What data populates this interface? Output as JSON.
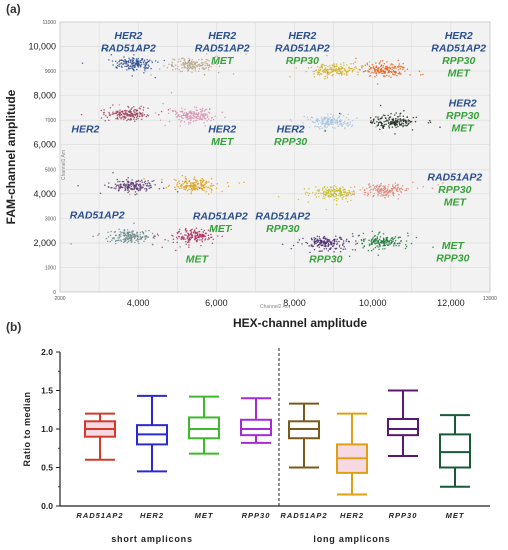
{
  "panel_a": {
    "label": "(a)",
    "xlabel": "HEX-channel amplitude",
    "ylabel": "FAM-channel amplitude",
    "inner_xlabel": "Channel2 Am",
    "inner_ylabel": "Channel1 Am",
    "colors": {
      "blue_label": "#2a4f8f",
      "green_label": "#37a23b",
      "plot_bg": "#f2f2f2"
    }
  },
  "panel_b": {
    "label": "(b)",
    "group_labels": [
      "short amplicons",
      "long amplicons"
    ]
  },
  "chart_data": [
    {
      "type": "scatter",
      "xlim": [
        2000,
        13000
      ],
      "ylim": [
        0,
        11000
      ],
      "x_ticks": [
        "4,000",
        "6,000",
        "8,000",
        "10,000",
        "12,000"
      ],
      "x_ticks_small": [
        "2000",
        "13000"
      ],
      "y_ticks": [
        "2,000",
        "4,000",
        "6,000",
        "8,000",
        "10,000"
      ],
      "y_ticks_small": [
        "0",
        "1000",
        "3000",
        "5000",
        "7000",
        "9000",
        "11000"
      ],
      "grid": true,
      "clusters": [
        {
          "x": 3900,
          "y": 9300,
          "color": "#2f4f8f"
        },
        {
          "x": 5400,
          "y": 9250,
          "color": "#b8a88a"
        },
        {
          "x": 9000,
          "y": 9050,
          "color": "#d4b32a"
        },
        {
          "x": 10300,
          "y": 9050,
          "color": "#e8641e"
        },
        {
          "x": 3700,
          "y": 7250,
          "color": "#a0405a"
        },
        {
          "x": 5400,
          "y": 7200,
          "color": "#d890b0"
        },
        {
          "x": 8900,
          "y": 6950,
          "color": "#a9c4e0"
        },
        {
          "x": 10500,
          "y": 6950,
          "color": "#1f2a1f"
        },
        {
          "x": 3900,
          "y": 4300,
          "color": "#5a3a70"
        },
        {
          "x": 5400,
          "y": 4350,
          "color": "#e0a010"
        },
        {
          "x": 9000,
          "y": 4050,
          "color": "#c8c02a"
        },
        {
          "x": 10300,
          "y": 4150,
          "color": "#e08878"
        },
        {
          "x": 3800,
          "y": 2250,
          "color": "#6a8a8a"
        },
        {
          "x": 5400,
          "y": 2250,
          "color": "#b03060"
        },
        {
          "x": 8800,
          "y": 2000,
          "color": "#4a2a70"
        },
        {
          "x": 10200,
          "y": 2050,
          "color": "#1f7a3a"
        }
      ],
      "annotations": [
        {
          "lines": [
            {
              "text": "HER2",
              "color": "blue"
            },
            {
              "text": "RAD51AP2",
              "color": "blue"
            }
          ],
          "x": 3750,
          "y": 10300
        },
        {
          "lines": [
            {
              "text": "HER2",
              "color": "blue"
            },
            {
              "text": "RAD51AP2",
              "color": "blue"
            },
            {
              "text": "MET",
              "color": "green"
            }
          ],
          "x": 6150,
          "y": 10300
        },
        {
          "lines": [
            {
              "text": "HER2",
              "color": "blue"
            },
            {
              "text": "RAD51AP2",
              "color": "blue"
            },
            {
              "text": "RPP30",
              "color": "green"
            }
          ],
          "x": 8200,
          "y": 10300
        },
        {
          "lines": [
            {
              "text": "HER2",
              "color": "blue"
            },
            {
              "text": "RAD51AP2",
              "color": "blue"
            },
            {
              "text": "RPP30",
              "color": "green"
            },
            {
              "text": "MET",
              "color": "green"
            }
          ],
          "x": 12200,
          "y": 10300
        },
        {
          "lines": [
            {
              "text": "HER2",
              "color": "blue"
            },
            {
              "text": "RPP30",
              "color": "green"
            },
            {
              "text": "MET",
              "color": "green"
            }
          ],
          "x": 12300,
          "y": 7550
        },
        {
          "lines": [
            {
              "text": "HER2",
              "color": "blue"
            }
          ],
          "x": 2650,
          "y": 6500
        },
        {
          "lines": [
            {
              "text": "HER2",
              "color": "blue"
            },
            {
              "text": "MET",
              "color": "green"
            }
          ],
          "x": 6150,
          "y": 6500
        },
        {
          "lines": [
            {
              "text": "HER2",
              "color": "blue"
            },
            {
              "text": "RPP30",
              "color": "green"
            }
          ],
          "x": 7900,
          "y": 6500
        },
        {
          "lines": [
            {
              "text": "RAD51AP2",
              "color": "blue"
            },
            {
              "text": "RPP30",
              "color": "green"
            },
            {
              "text": "MET",
              "color": "green"
            }
          ],
          "x": 12100,
          "y": 4550
        },
        {
          "lines": [
            {
              "text": "RAD51AP2",
              "color": "blue"
            }
          ],
          "x": 2950,
          "y": 3000
        },
        {
          "lines": [
            {
              "text": "RAD51AP2",
              "color": "blue"
            },
            {
              "text": "MET",
              "color": "green"
            }
          ],
          "x": 6100,
          "y": 2950
        },
        {
          "lines": [
            {
              "text": "RAD51AP2",
              "color": "blue"
            },
            {
              "text": "RPP30",
              "color": "green"
            }
          ],
          "x": 7700,
          "y": 2950
        },
        {
          "lines": [
            {
              "text": "MET",
              "color": "green"
            },
            {
              "text": "RPP30",
              "color": "green"
            }
          ],
          "x": 12050,
          "y": 1750
        },
        {
          "lines": [
            {
              "text": "RPP30",
              "color": "green"
            }
          ],
          "x": 8800,
          "y": 1200
        },
        {
          "lines": [
            {
              "text": "MET",
              "color": "green"
            }
          ],
          "x": 5500,
          "y": 1200
        }
      ]
    },
    {
      "type": "boxplot",
      "ylabel": "Ratio to median",
      "ylim": [
        0.0,
        2.0
      ],
      "y_ticks": [
        "0.0",
        "0.5",
        "1.0",
        "1.5",
        "2.0"
      ],
      "categories": [
        "RAD51AP2",
        "HER2",
        "MET",
        "RPP30",
        "RAD51AP2",
        "HER2",
        "RPP30",
        "MET"
      ],
      "boxes": [
        {
          "min": 0.6,
          "q1": 0.9,
          "median": 1.0,
          "q3": 1.1,
          "max": 1.2,
          "color": "#d23a2a",
          "fill": "#f7d9e4"
        },
        {
          "min": 0.45,
          "q1": 0.8,
          "median": 0.93,
          "q3": 1.05,
          "max": 1.43,
          "color": "#2a2ad0",
          "fill": "#ffffff"
        },
        {
          "min": 0.68,
          "q1": 0.88,
          "median": 1.0,
          "q3": 1.15,
          "max": 1.42,
          "color": "#3cba2a",
          "fill": "#ffffff"
        },
        {
          "min": 0.82,
          "q1": 0.92,
          "median": 1.0,
          "q3": 1.12,
          "max": 1.4,
          "color": "#a62ad6",
          "fill": "#ffffff"
        },
        {
          "min": 0.5,
          "q1": 0.88,
          "median": 1.0,
          "q3": 1.1,
          "max": 1.33,
          "color": "#7a5a1a",
          "fill": "#ffffff"
        },
        {
          "min": 0.15,
          "q1": 0.43,
          "median": 0.62,
          "q3": 0.8,
          "max": 1.2,
          "color": "#e0a012",
          "fill": "#f7d9e4"
        },
        {
          "min": 0.65,
          "q1": 0.92,
          "median": 1.0,
          "q3": 1.13,
          "max": 1.5,
          "color": "#5a1870",
          "fill": "#ffffff"
        },
        {
          "min": 0.25,
          "q1": 0.5,
          "median": 0.7,
          "q3": 0.93,
          "max": 1.18,
          "color": "#1a5a3a",
          "fill": "#ffffff"
        }
      ]
    }
  ]
}
